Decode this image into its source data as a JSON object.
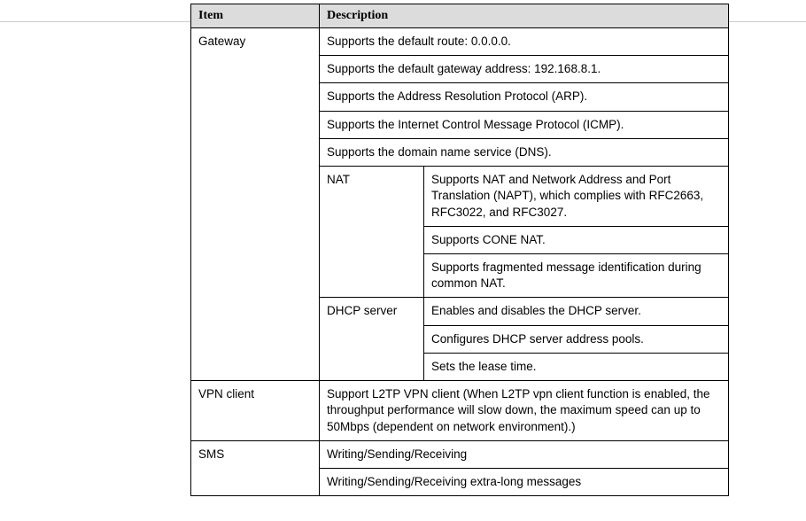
{
  "headers": {
    "item": "Item",
    "description": "Description"
  },
  "rows": {
    "gateway": {
      "label": "Gateway",
      "default_route": "Supports the default route: 0.0.0.0.",
      "default_gateway": "Supports the default gateway address: 192.168.8.1.",
      "arp": "Supports the Address Resolution Protocol (ARP).",
      "icmp": "Supports the Internet Control Message Protocol (ICMP).",
      "dns": "Supports the domain name service (DNS).",
      "nat": {
        "label": "NAT",
        "napt": "Supports NAT and Network Address and Port Translation (NAPT), which complies with RFC2663, RFC3022, and RFC3027.",
        "cone": "Supports CONE NAT.",
        "frag": "Supports fragmented message identification during common NAT."
      },
      "dhcp": {
        "label": "DHCP server",
        "enable": "Enables and disables the DHCP server.",
        "pools": "Configures DHCP server address pools.",
        "lease": "Sets the lease time."
      }
    },
    "vpn": {
      "label": "VPN client",
      "desc": "Support L2TP VPN client (When L2TP vpn client function is enabled, the throughput performance will slow down, the maximum speed can up to 50Mbps (dependent on network environment).)"
    },
    "sms": {
      "label": "SMS",
      "basic": "Writing/Sending/Receiving",
      "long": "Writing/Sending/Receiving extra-long messages"
    }
  }
}
